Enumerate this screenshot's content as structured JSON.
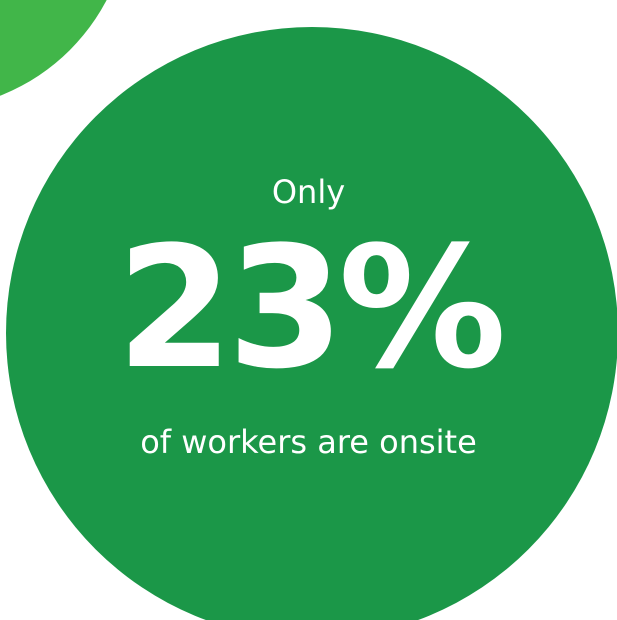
{
  "stat": {
    "prefix": "Only",
    "value": "23%",
    "suffix": "of workers are onsite"
  },
  "colors": {
    "background": "#ffffff",
    "circle": "#1b9748",
    "accent": "#41b649",
    "text": "#ffffff"
  }
}
